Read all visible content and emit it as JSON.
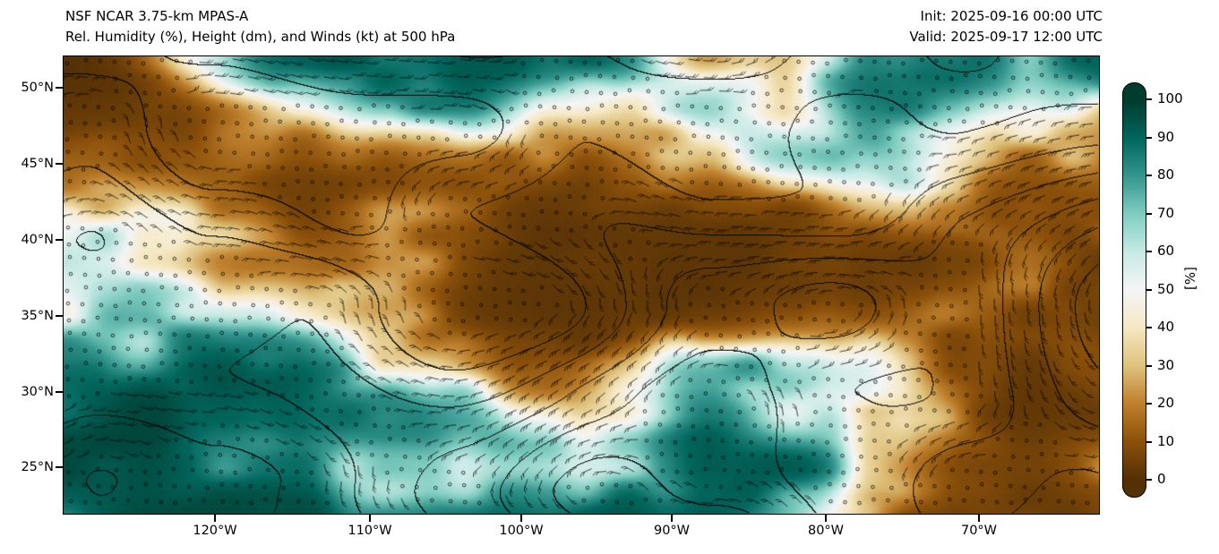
{
  "header": {
    "model_title": "NSF NCAR 3.75-km MPAS-A",
    "product_title": "Rel. Humidity (%), Height (dm), and Winds (kt) at 500 hPa",
    "init_time": "Init: 2025-09-16 00:00 UTC",
    "valid_time": "Valid: 2025-09-17 12:00 UTC"
  },
  "chart_data": {
    "type": "heatmap",
    "title": "Rel. Humidity (%), Height (dm), and Winds (kt) at 500 hPa",
    "model": "NSF NCAR 3.75-km MPAS-A",
    "init": "2025-09-16 00:00 UTC",
    "valid": "2025-09-17 12:00 UTC",
    "field": "relative humidity",
    "units": "%",
    "level": "500 hPa",
    "overlays": [
      "geopotential height contours (dm)",
      "wind barbs (kt)",
      "calm-wind circles"
    ],
    "map_region": "CONUS and surroundings",
    "x_axis": {
      "tick_labels": [
        "120°W",
        "110°W",
        "100°W",
        "90°W",
        "80°W",
        "70°W"
      ],
      "approx_range": [
        "130°W",
        "62°W"
      ],
      "grid": false
    },
    "y_axis": {
      "tick_labels": [
        "50°N",
        "45°N",
        "40°N",
        "35°N",
        "30°N",
        "25°N"
      ],
      "approx_range": [
        "22°N",
        "52°N"
      ],
      "grid": false
    },
    "colorbar": {
      "label": "[%]",
      "tick_labels": [
        "100",
        "90",
        "80",
        "70",
        "60",
        "50",
        "40",
        "30",
        "20",
        "10",
        "0"
      ],
      "range": [
        0,
        100
      ],
      "colormap": "BrBG",
      "colors": [
        "#543005",
        "#8c510a",
        "#bf812d",
        "#dfc27d",
        "#f6e8c3",
        "#f5f5f5",
        "#c7eae5",
        "#80cdc1",
        "#35978f",
        "#01665e",
        "#003c30"
      ],
      "position": "right"
    }
  }
}
